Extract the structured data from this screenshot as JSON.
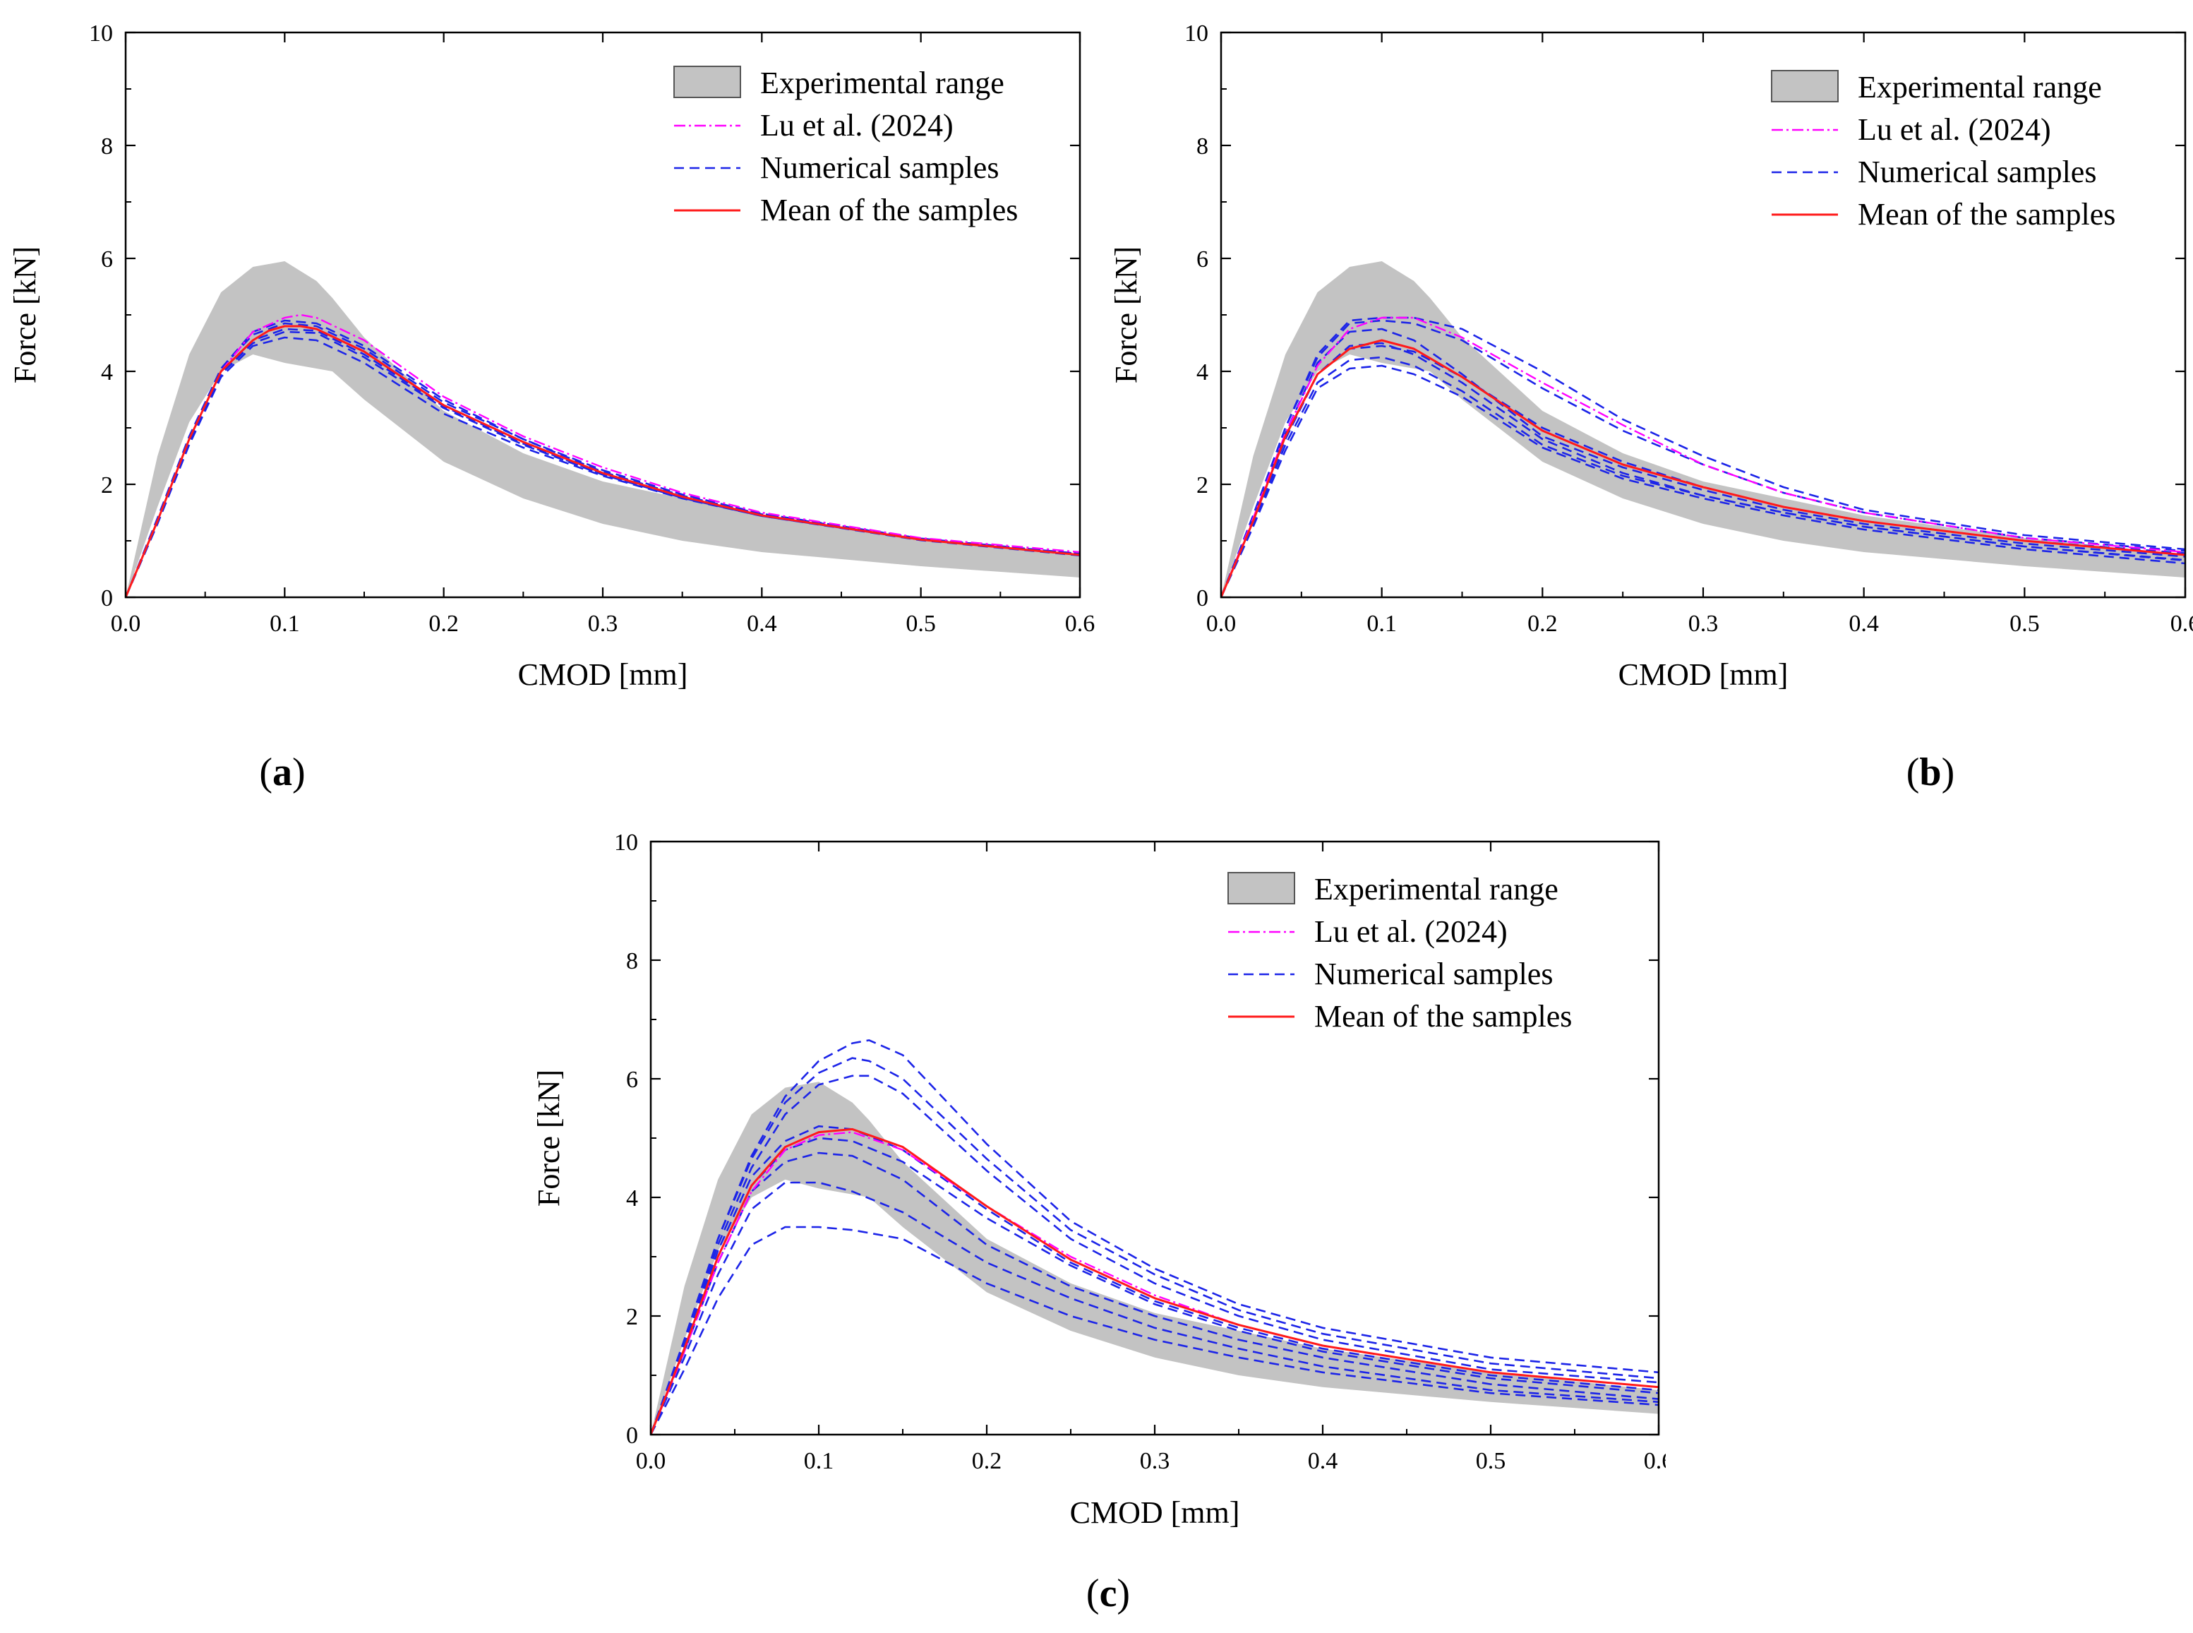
{
  "colors": {
    "band": "#c3c3c3",
    "lu": "#ff00ff",
    "samples": "#1c24e8",
    "mean": "#ff1a1a",
    "axis": "#000000"
  },
  "legend": {
    "experimental": "Experimental range",
    "lu": "Lu et al. (2024)",
    "samples": "Numerical samples",
    "mean": "Mean of the samples"
  },
  "axes": {
    "xlabel": "CMOD [mm]",
    "ylabel": "Force [kN]",
    "xticks": [
      "0.0",
      "0.1",
      "0.2",
      "0.3",
      "0.4",
      "0.5",
      "0.6"
    ],
    "yticks": [
      "0",
      "2",
      "4",
      "6",
      "8",
      "10"
    ]
  },
  "captions": {
    "a": {
      "open": "(",
      "letter": "a",
      "close": ")"
    },
    "b": {
      "open": "(",
      "letter": "b",
      "close": ")"
    },
    "c": {
      "open": "(",
      "letter": "c",
      "close": ")"
    }
  },
  "chart_data": [
    {
      "panel": "a",
      "type": "line",
      "xlabel": "CMOD [mm]",
      "ylabel": "Force [kN]",
      "xlim": [
        0,
        0.6
      ],
      "ylim": [
        0,
        10
      ],
      "experimental_range": {
        "x": [
          0,
          0.02,
          0.04,
          0.06,
          0.08,
          0.1,
          0.12,
          0.13,
          0.15,
          0.2,
          0.25,
          0.3,
          0.35,
          0.4,
          0.5,
          0.6
        ],
        "upper": [
          0,
          2.5,
          4.3,
          5.4,
          5.85,
          5.95,
          5.6,
          5.3,
          4.6,
          3.3,
          2.55,
          2.05,
          1.75,
          1.45,
          1.05,
          0.75
        ],
        "lower": [
          0,
          1.6,
          3.1,
          4.0,
          4.3,
          4.15,
          4.05,
          4.0,
          3.5,
          2.4,
          1.75,
          1.3,
          1.0,
          0.8,
          0.55,
          0.35
        ]
      },
      "lu_2024": {
        "x": [
          0,
          0.02,
          0.04,
          0.06,
          0.08,
          0.1,
          0.11,
          0.12,
          0.15,
          0.2,
          0.25,
          0.3,
          0.35,
          0.4,
          0.5,
          0.6
        ],
        "y": [
          0,
          1.35,
          2.8,
          4.0,
          4.7,
          4.95,
          5.0,
          4.95,
          4.55,
          3.55,
          2.85,
          2.3,
          1.85,
          1.5,
          1.05,
          0.8
        ]
      },
      "mean": {
        "x": [
          0,
          0.02,
          0.04,
          0.06,
          0.08,
          0.09,
          0.1,
          0.11,
          0.12,
          0.15,
          0.2,
          0.25,
          0.3,
          0.35,
          0.4,
          0.5,
          0.6
        ],
        "y": [
          0,
          1.35,
          2.8,
          4.0,
          4.55,
          4.72,
          4.8,
          4.8,
          4.75,
          4.35,
          3.4,
          2.75,
          2.2,
          1.78,
          1.45,
          1.02,
          0.75
        ]
      },
      "samples": [
        {
          "x": [
            0,
            0.02,
            0.04,
            0.06,
            0.08,
            0.1,
            0.12,
            0.15,
            0.2,
            0.25,
            0.3,
            0.35,
            0.4,
            0.5,
            0.6
          ],
          "y": [
            0,
            1.35,
            2.8,
            4.05,
            4.65,
            4.85,
            4.8,
            4.4,
            3.45,
            2.8,
            2.22,
            1.8,
            1.47,
            1.04,
            0.77
          ]
        },
        {
          "x": [
            0,
            0.02,
            0.04,
            0.06,
            0.08,
            0.1,
            0.12,
            0.15,
            0.2,
            0.25,
            0.3,
            0.35,
            0.4,
            0.5,
            0.6
          ],
          "y": [
            0,
            1.3,
            2.7,
            3.9,
            4.45,
            4.6,
            4.55,
            4.15,
            3.25,
            2.65,
            2.15,
            1.75,
            1.44,
            1.02,
            0.76
          ]
        },
        {
          "x": [
            0,
            0.02,
            0.04,
            0.06,
            0.08,
            0.1,
            0.12,
            0.15,
            0.2,
            0.25,
            0.3,
            0.35,
            0.4,
            0.5,
            0.6
          ],
          "y": [
            0,
            1.35,
            2.75,
            3.95,
            4.55,
            4.75,
            4.72,
            4.3,
            3.38,
            2.72,
            2.18,
            1.77,
            1.45,
            1.02,
            0.75
          ]
        },
        {
          "x": [
            0,
            0.02,
            0.04,
            0.06,
            0.08,
            0.1,
            0.12,
            0.15,
            0.2,
            0.25,
            0.3,
            0.35,
            0.4,
            0.5,
            0.6
          ],
          "y": [
            0,
            1.4,
            2.85,
            4.05,
            4.7,
            4.9,
            4.85,
            4.45,
            3.5,
            2.8,
            2.25,
            1.82,
            1.48,
            1.04,
            0.77
          ]
        },
        {
          "x": [
            0,
            0.02,
            0.04,
            0.06,
            0.08,
            0.1,
            0.12,
            0.15,
            0.2,
            0.25,
            0.3,
            0.35,
            0.4,
            0.5,
            0.6
          ],
          "y": [
            0,
            1.3,
            2.75,
            3.95,
            4.5,
            4.7,
            4.68,
            4.25,
            3.35,
            2.7,
            2.17,
            1.76,
            1.44,
            1.01,
            0.74
          ]
        }
      ]
    },
    {
      "panel": "b",
      "type": "line",
      "xlabel": "CMOD [mm]",
      "ylabel": "Force [kN]",
      "xlim": [
        0,
        0.6
      ],
      "ylim": [
        0,
        10
      ],
      "experimental_range": {
        "x": [
          0,
          0.02,
          0.04,
          0.06,
          0.08,
          0.1,
          0.12,
          0.13,
          0.15,
          0.2,
          0.25,
          0.3,
          0.35,
          0.4,
          0.5,
          0.6
        ],
        "upper": [
          0,
          2.5,
          4.3,
          5.4,
          5.85,
          5.95,
          5.6,
          5.3,
          4.6,
          3.3,
          2.55,
          2.05,
          1.75,
          1.45,
          1.05,
          0.75
        ],
        "lower": [
          0,
          1.6,
          3.1,
          4.0,
          4.3,
          4.15,
          4.05,
          4.0,
          3.5,
          2.4,
          1.75,
          1.3,
          1.0,
          0.8,
          0.55,
          0.35
        ]
      },
      "lu_2024": {
        "x": [
          0,
          0.02,
          0.04,
          0.06,
          0.08,
          0.1,
          0.12,
          0.15,
          0.2,
          0.25,
          0.3,
          0.35,
          0.4,
          0.5,
          0.6
        ],
        "y": [
          0,
          1.4,
          2.9,
          4.1,
          4.75,
          4.95,
          4.95,
          4.6,
          3.8,
          3.05,
          2.35,
          1.85,
          1.5,
          1.05,
          0.8
        ]
      },
      "mean": {
        "x": [
          0,
          0.02,
          0.04,
          0.06,
          0.08,
          0.1,
          0.12,
          0.15,
          0.2,
          0.25,
          0.3,
          0.35,
          0.4,
          0.5,
          0.6
        ],
        "y": [
          0,
          1.35,
          2.85,
          3.95,
          4.4,
          4.55,
          4.4,
          3.9,
          2.95,
          2.35,
          1.95,
          1.6,
          1.35,
          1.0,
          0.75
        ]
      },
      "samples": [
        {
          "x": [
            0,
            0.02,
            0.04,
            0.06,
            0.08,
            0.1,
            0.12,
            0.15,
            0.2,
            0.25,
            0.3,
            0.35,
            0.4,
            0.5,
            0.6
          ],
          "y": [
            0,
            1.45,
            3.0,
            4.3,
            4.9,
            4.95,
            4.95,
            4.75,
            4.0,
            3.15,
            2.5,
            1.95,
            1.55,
            1.1,
            0.85
          ]
        },
        {
          "x": [
            0,
            0.02,
            0.04,
            0.06,
            0.08,
            0.1,
            0.12,
            0.15,
            0.2,
            0.25,
            0.3,
            0.35,
            0.4,
            0.5,
            0.6
          ],
          "y": [
            0,
            1.45,
            3.0,
            4.25,
            4.85,
            4.9,
            4.85,
            4.55,
            3.7,
            2.95,
            2.35,
            1.85,
            1.5,
            1.05,
            0.82
          ]
        },
        {
          "x": [
            0,
            0.02,
            0.04,
            0.06,
            0.08,
            0.1,
            0.12,
            0.15,
            0.2,
            0.25,
            0.3,
            0.35,
            0.4,
            0.5,
            0.6
          ],
          "y": [
            0,
            1.4,
            2.9,
            4.15,
            4.7,
            4.75,
            4.55,
            3.95,
            2.85,
            2.3,
            1.9,
            1.55,
            1.3,
            0.95,
            0.72
          ]
        },
        {
          "x": [
            0,
            0.02,
            0.04,
            0.06,
            0.08,
            0.1,
            0.12,
            0.15,
            0.2,
            0.25,
            0.3,
            0.35,
            0.4,
            0.5,
            0.6
          ],
          "y": [
            0,
            1.35,
            2.8,
            3.95,
            4.45,
            4.5,
            4.3,
            3.8,
            2.8,
            2.2,
            1.8,
            1.5,
            1.25,
            0.9,
            0.65
          ]
        },
        {
          "x": [
            0,
            0.02,
            0.04,
            0.06,
            0.08,
            0.1,
            0.12,
            0.15,
            0.2,
            0.25,
            0.3,
            0.35,
            0.4,
            0.5,
            0.6
          ],
          "y": [
            0,
            1.3,
            2.7,
            3.8,
            4.2,
            4.25,
            4.1,
            3.65,
            2.7,
            2.15,
            1.8,
            1.5,
            1.25,
            0.9,
            0.66
          ]
        },
        {
          "x": [
            0,
            0.02,
            0.04,
            0.06,
            0.08,
            0.1,
            0.12,
            0.15,
            0.2,
            0.25,
            0.3,
            0.35,
            0.4,
            0.5,
            0.6
          ],
          "y": [
            0,
            1.25,
            2.6,
            3.7,
            4.05,
            4.1,
            3.95,
            3.55,
            2.65,
            2.1,
            1.75,
            1.45,
            1.2,
            0.85,
            0.6
          ]
        },
        {
          "x": [
            0,
            0.02,
            0.04,
            0.06,
            0.08,
            0.1,
            0.12,
            0.15,
            0.2,
            0.25,
            0.3,
            0.35,
            0.4,
            0.5,
            0.6
          ],
          "y": [
            0,
            1.35,
            2.8,
            3.95,
            4.4,
            4.45,
            4.35,
            3.9,
            3.0,
            2.4,
            1.95,
            1.6,
            1.35,
            1.0,
            0.78
          ]
        }
      ]
    },
    {
      "panel": "c",
      "type": "line",
      "xlabel": "CMOD [mm]",
      "ylabel": "Force [kN]",
      "xlim": [
        0,
        0.6
      ],
      "ylim": [
        0,
        10
      ],
      "experimental_range": {
        "x": [
          0,
          0.02,
          0.04,
          0.06,
          0.08,
          0.1,
          0.12,
          0.13,
          0.15,
          0.2,
          0.25,
          0.3,
          0.35,
          0.4,
          0.5,
          0.6
        ],
        "upper": [
          0,
          2.5,
          4.3,
          5.4,
          5.85,
          5.95,
          5.6,
          5.3,
          4.6,
          3.3,
          2.55,
          2.05,
          1.75,
          1.45,
          1.05,
          0.75
        ],
        "lower": [
          0,
          1.6,
          3.1,
          4.0,
          4.3,
          4.15,
          4.05,
          4.0,
          3.5,
          2.4,
          1.75,
          1.3,
          1.0,
          0.8,
          0.55,
          0.35
        ]
      },
      "lu_2024": {
        "x": [
          0,
          0.02,
          0.04,
          0.06,
          0.08,
          0.1,
          0.12,
          0.15,
          0.2,
          0.25,
          0.3,
          0.35,
          0.4,
          0.5,
          0.6
        ],
        "y": [
          0,
          1.4,
          2.9,
          4.1,
          4.8,
          5.05,
          5.1,
          4.8,
          3.85,
          3.0,
          2.35,
          1.85,
          1.5,
          1.05,
          0.8
        ]
      },
      "mean": {
        "x": [
          0,
          0.02,
          0.04,
          0.06,
          0.08,
          0.1,
          0.12,
          0.15,
          0.2,
          0.25,
          0.3,
          0.35,
          0.4,
          0.5,
          0.6
        ],
        "y": [
          0,
          1.45,
          3.0,
          4.2,
          4.85,
          5.1,
          5.15,
          4.85,
          3.85,
          2.95,
          2.3,
          1.85,
          1.5,
          1.05,
          0.8
        ]
      },
      "samples": [
        {
          "x": [
            0,
            0.02,
            0.04,
            0.06,
            0.08,
            0.1,
            0.12,
            0.13,
            0.15,
            0.2,
            0.25,
            0.3,
            0.35,
            0.4,
            0.5,
            0.6
          ],
          "y": [
            0,
            1.6,
            3.3,
            4.7,
            5.7,
            6.3,
            6.6,
            6.65,
            6.4,
            4.9,
            3.6,
            2.8,
            2.2,
            1.8,
            1.3,
            1.05
          ]
        },
        {
          "x": [
            0,
            0.02,
            0.04,
            0.06,
            0.08,
            0.1,
            0.12,
            0.13,
            0.15,
            0.2,
            0.25,
            0.3,
            0.35,
            0.4,
            0.5,
            0.6
          ],
          "y": [
            0,
            1.6,
            3.3,
            4.65,
            5.6,
            6.1,
            6.35,
            6.3,
            6.0,
            4.65,
            3.45,
            2.7,
            2.1,
            1.7,
            1.2,
            0.95
          ]
        },
        {
          "x": [
            0,
            0.02,
            0.04,
            0.06,
            0.08,
            0.1,
            0.12,
            0.13,
            0.15,
            0.2,
            0.25,
            0.3,
            0.35,
            0.4,
            0.5,
            0.6
          ],
          "y": [
            0,
            1.55,
            3.2,
            4.5,
            5.4,
            5.9,
            6.05,
            6.05,
            5.75,
            4.45,
            3.3,
            2.55,
            2.0,
            1.6,
            1.1,
            0.88
          ]
        },
        {
          "x": [
            0,
            0.02,
            0.04,
            0.06,
            0.08,
            0.1,
            0.12,
            0.15,
            0.2,
            0.25,
            0.3,
            0.35,
            0.4,
            0.5,
            0.6
          ],
          "y": [
            0,
            1.5,
            3.1,
            4.35,
            4.95,
            5.2,
            5.15,
            4.8,
            3.8,
            2.9,
            2.25,
            1.8,
            1.45,
            1.0,
            0.75
          ]
        },
        {
          "x": [
            0,
            0.02,
            0.04,
            0.06,
            0.08,
            0.1,
            0.12,
            0.15,
            0.2,
            0.25,
            0.3,
            0.35,
            0.4,
            0.5,
            0.6
          ],
          "y": [
            0,
            1.45,
            3.0,
            4.2,
            4.8,
            5.0,
            4.95,
            4.6,
            3.65,
            2.85,
            2.2,
            1.75,
            1.4,
            0.95,
            0.7
          ]
        },
        {
          "x": [
            0,
            0.02,
            0.04,
            0.06,
            0.08,
            0.1,
            0.12,
            0.15,
            0.2,
            0.25,
            0.3,
            0.35,
            0.4,
            0.5,
            0.6
          ],
          "y": [
            0,
            1.4,
            2.9,
            4.1,
            4.6,
            4.75,
            4.7,
            4.3,
            3.2,
            2.5,
            2.0,
            1.6,
            1.3,
            0.85,
            0.6
          ]
        },
        {
          "x": [
            0,
            0.02,
            0.04,
            0.06,
            0.08,
            0.1,
            0.12,
            0.15,
            0.2,
            0.25,
            0.3,
            0.35,
            0.4,
            0.5,
            0.6
          ],
          "y": [
            0,
            1.3,
            2.7,
            3.8,
            4.25,
            4.25,
            4.1,
            3.75,
            2.9,
            2.3,
            1.8,
            1.45,
            1.15,
            0.75,
            0.55
          ]
        },
        {
          "x": [
            0,
            0.02,
            0.04,
            0.06,
            0.08,
            0.1,
            0.12,
            0.15,
            0.2,
            0.25,
            0.3,
            0.35,
            0.4,
            0.5,
            0.6
          ],
          "y": [
            0,
            1.1,
            2.3,
            3.2,
            3.5,
            3.5,
            3.45,
            3.3,
            2.55,
            2.0,
            1.6,
            1.3,
            1.05,
            0.7,
            0.5
          ]
        }
      ]
    }
  ]
}
